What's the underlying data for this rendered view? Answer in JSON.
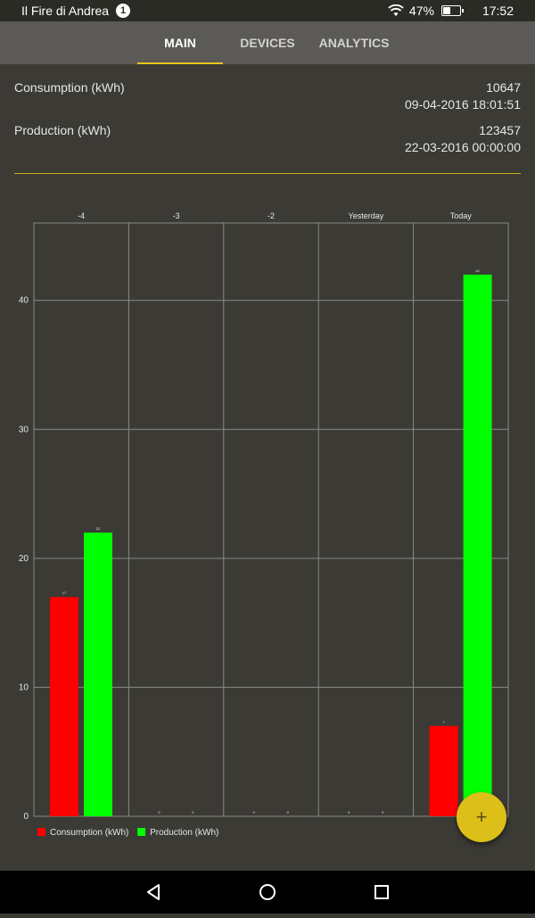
{
  "status_bar": {
    "network_name": "Il Fire di Andrea",
    "notification_count": "1",
    "battery_percent": "47%",
    "battery_level": 0.47,
    "time": "17:52",
    "icons": [
      "wifi-icon",
      "battery-icon"
    ]
  },
  "tabs": [
    {
      "label": "MAIN",
      "active": true
    },
    {
      "label": "DEVICES",
      "active": false
    },
    {
      "label": "ANALYTICS",
      "active": false
    }
  ],
  "summary": {
    "consumption": {
      "label": "Consumption (kWh)",
      "value": "10647",
      "timestamp": "09-04-2016 18:01:51"
    },
    "production": {
      "label": "Production (kWh)",
      "value": "123457",
      "timestamp": "22-03-2016 00:00:00"
    }
  },
  "colors": {
    "accent": "#e8c31e",
    "consumption": "#ff0000",
    "production": "#00ff00",
    "fab": "#dcc019"
  },
  "chart_data": {
    "type": "bar",
    "categories": [
      "-4",
      "-3",
      "-2",
      "Yesterday",
      "Today"
    ],
    "series": [
      {
        "name": "Consumption (kWh)",
        "values": [
          17,
          0,
          0,
          0,
          7
        ]
      },
      {
        "name": "Production (kWh)",
        "values": [
          22,
          0,
          0,
          0,
          42
        ]
      }
    ],
    "yticks": [
      0,
      10,
      20,
      30,
      40
    ],
    "ylim": [
      0,
      46
    ],
    "grid": true,
    "legend_position": "bottom-left"
  },
  "fab": {
    "icon": "plus-icon",
    "label": "+"
  },
  "nav_bar": {
    "icons": [
      "back-icon",
      "home-icon",
      "recents-icon"
    ]
  }
}
